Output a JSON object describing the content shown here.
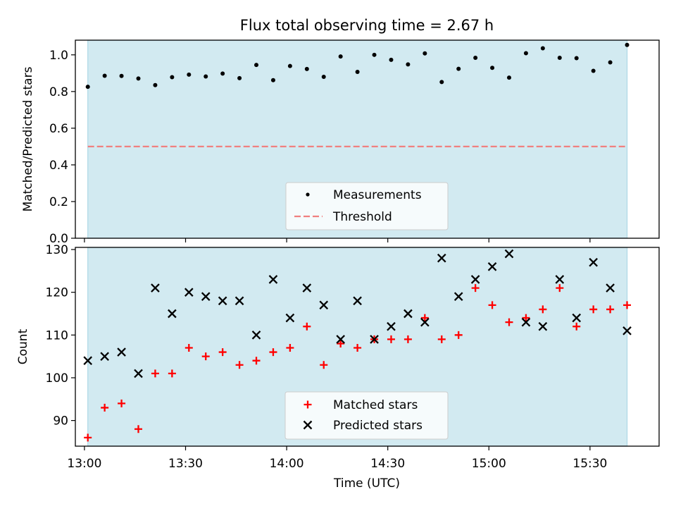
{
  "title": "Flux total observing time = 2.67 h",
  "xlabel": "Time (UTC)",
  "xticks": [
    "13:00",
    "13:30",
    "14:00",
    "14:30",
    "15:00",
    "15:30"
  ],
  "colors": {
    "shade": "#add8e6",
    "measure": "#000000",
    "threshold": "#f08080",
    "matched": "#ff0000",
    "predicted": "#000000"
  },
  "chart_data": [
    {
      "type": "scatter",
      "ylabel": "Matched/Predicted stars",
      "ylim": [
        0,
        1.08
      ],
      "yticks": [
        "0.0",
        "0.2",
        "0.4",
        "0.6",
        "0.8",
        "1.0"
      ],
      "legend": {
        "placement": "lower-center",
        "entries": [
          "Measurements",
          "Threshold"
        ]
      },
      "threshold": 0.5,
      "shaded_span_minutes": [
        1,
        161
      ],
      "x_minutes_after_1300": [
        1,
        6,
        11,
        16,
        21,
        26,
        31,
        36,
        41,
        46,
        51,
        56,
        61,
        66,
        71,
        76,
        81,
        86,
        91,
        96,
        101,
        106,
        111,
        116,
        121,
        126,
        131,
        136,
        141,
        146,
        151,
        156,
        161
      ],
      "series": [
        {
          "name": "Measurements",
          "values": [
            0.826,
            0.886,
            0.885,
            0.871,
            0.835,
            0.878,
            0.892,
            0.882,
            0.898,
            0.873,
            0.945,
            0.862,
            0.939,
            0.923,
            0.88,
            0.991,
            0.907,
            1.0,
            0.973,
            0.948,
            1.008,
            0.852,
            0.924,
            0.984,
            0.929,
            0.876,
            1.009,
            1.036,
            0.984,
            0.982,
            0.913,
            0.959,
            1.054
          ]
        }
      ]
    },
    {
      "type": "scatter",
      "ylabel": "Count",
      "ylim": [
        84,
        130.5
      ],
      "yticks": [
        "90",
        "100",
        "110",
        "120",
        "130"
      ],
      "legend": {
        "placement": "lower-center",
        "entries": [
          "Matched stars",
          "Predicted stars"
        ]
      },
      "shaded_span_minutes": [
        1,
        161
      ],
      "x_minutes_after_1300": [
        1,
        6,
        11,
        16,
        21,
        26,
        31,
        36,
        41,
        46,
        51,
        56,
        61,
        66,
        71,
        76,
        81,
        86,
        91,
        96,
        101,
        106,
        111,
        116,
        121,
        126,
        131,
        136,
        141,
        146,
        151,
        156,
        161
      ],
      "series": [
        {
          "name": "Matched stars",
          "values": [
            86,
            93,
            94,
            88,
            101,
            101,
            107,
            105,
            106,
            103,
            104,
            106,
            107,
            112,
            103,
            108,
            107,
            109,
            109,
            109,
            114,
            109,
            110,
            121,
            117,
            113,
            114,
            116,
            121,
            112,
            116,
            116,
            117
          ]
        },
        {
          "name": "Predicted stars",
          "values": [
            104,
            105,
            106,
            101,
            121,
            115,
            120,
            119,
            118,
            118,
            110,
            123,
            114,
            121,
            117,
            109,
            118,
            109,
            112,
            115,
            113,
            128,
            119,
            123,
            126,
            129,
            113,
            112,
            123,
            114,
            127,
            121,
            111
          ]
        }
      ]
    }
  ]
}
